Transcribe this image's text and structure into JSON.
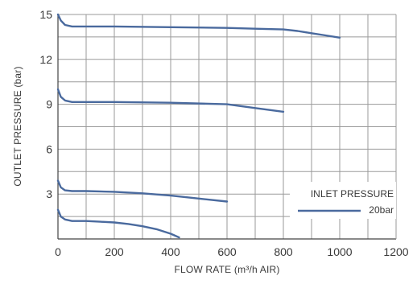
{
  "chart_data": {
    "type": "line",
    "title": "",
    "xlabel": "FLOW RATE (m³/h AIR)",
    "ylabel": "OUTLET PRESSURE (bar)",
    "xlim": [
      0,
      1200
    ],
    "ylim": [
      0,
      15
    ],
    "xticks": [
      0,
      200,
      400,
      600,
      800,
      1000,
      1200
    ],
    "yticks": [
      3,
      6,
      9,
      12,
      15
    ],
    "grid": true,
    "legend": {
      "title": "INLET PRESSURE",
      "entries": [
        "20bar"
      ],
      "placement": "bottom-right"
    },
    "colors": {
      "series": "#4a6a9e",
      "grid": "#9a9a9a",
      "text": "#3a3a3a"
    },
    "series": [
      {
        "x": [
          0,
          10,
          25,
          50,
          100,
          200,
          400,
          600,
          700,
          800,
          850,
          900,
          950,
          1000
        ],
        "y": [
          15.0,
          14.6,
          14.3,
          14.2,
          14.2,
          14.2,
          14.15,
          14.1,
          14.05,
          14.0,
          13.9,
          13.75,
          13.6,
          13.45
        ]
      },
      {
        "x": [
          0,
          10,
          25,
          50,
          100,
          200,
          400,
          600,
          700,
          800
        ],
        "y": [
          10.0,
          9.5,
          9.25,
          9.15,
          9.15,
          9.15,
          9.1,
          9.0,
          8.75,
          8.5
        ]
      },
      {
        "x": [
          0,
          10,
          25,
          50,
          100,
          200,
          300,
          400,
          500,
          600
        ],
        "y": [
          3.9,
          3.45,
          3.25,
          3.2,
          3.2,
          3.15,
          3.05,
          2.9,
          2.7,
          2.5
        ]
      },
      {
        "x": [
          0,
          10,
          25,
          50,
          100,
          150,
          200,
          250,
          300,
          350,
          400,
          430
        ],
        "y": [
          1.95,
          1.5,
          1.3,
          1.2,
          1.2,
          1.15,
          1.1,
          1.0,
          0.85,
          0.65,
          0.35,
          0.1
        ]
      }
    ]
  }
}
